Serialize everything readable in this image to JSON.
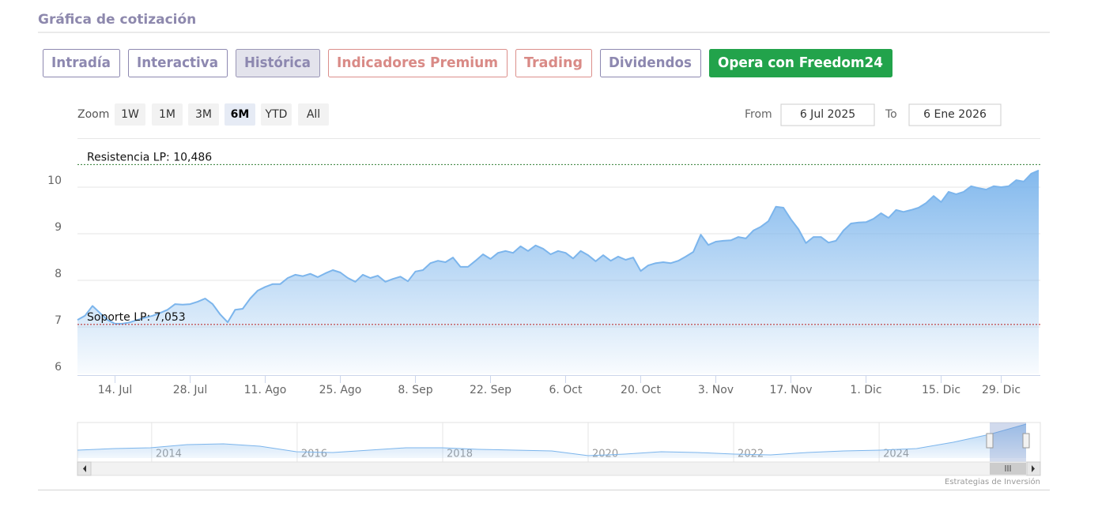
{
  "header": {
    "title": "Gráfica de cotización"
  },
  "tabs": [
    "Intradía",
    "Interactiva",
    "Histórica",
    "Indicadores Premium",
    "Trading",
    "Dividendos",
    "Opera con Freedom24"
  ],
  "zoom": {
    "label": "Zoom",
    "buttons": [
      {
        "label": "1W",
        "selected": false
      },
      {
        "label": "1M",
        "selected": false
      },
      {
        "label": "3M",
        "selected": false
      },
      {
        "label": "6M",
        "selected": true
      },
      {
        "label": "YTD",
        "selected": false
      },
      {
        "label": "All",
        "selected": false
      }
    ]
  },
  "range": {
    "from_label": "From",
    "from": "6 Jul 2025",
    "to_label": "To",
    "to": "6 Ene 2026"
  },
  "credit": "Estrategias de Inversión",
  "chart_data": {
    "type": "area",
    "color": "#7cb5ec",
    "x": [
      "7. Jul",
      "8. Jul",
      "9. Jul",
      "10. Jul",
      "11. Jul",
      "14. Jul",
      "15. Jul",
      "16. Jul",
      "17. Jul",
      "18. Jul",
      "21. Jul",
      "22. Jul",
      "23. Jul",
      "24. Jul",
      "25. Jul",
      "28. Jul",
      "29. Jul",
      "30. Jul",
      "31. Jul",
      "1. Ago",
      "4. Ago",
      "5. Ago",
      "6. Ago",
      "7. Ago",
      "8. Ago",
      "11. Ago",
      "12. Ago",
      "13. Ago",
      "14. Ago",
      "15. Ago",
      "18. Ago",
      "19. Ago",
      "20. Ago",
      "21. Ago",
      "22. Ago",
      "25. Ago",
      "26. Ago",
      "27. Ago",
      "28. Ago",
      "29. Ago",
      "1. Sep",
      "2. Sep",
      "3. Sep",
      "4. Sep",
      "5. Sep",
      "8. Sep",
      "9. Sep",
      "10. Sep",
      "11. Sep",
      "12. Sep",
      "15. Sep",
      "16. Sep",
      "17. Sep",
      "18. Sep",
      "19. Sep",
      "22. Sep",
      "23. Sep",
      "24. Sep",
      "25. Sep",
      "26. Sep",
      "29. Sep",
      "30. Sep",
      "1. Oct",
      "2. Oct",
      "3. Oct",
      "6. Oct",
      "7. Oct",
      "8. Oct",
      "9. Oct",
      "10. Oct",
      "13. Oct",
      "14. Oct",
      "15. Oct",
      "16. Oct",
      "17. Oct",
      "20. Oct",
      "21. Oct",
      "22. Oct",
      "23. Oct",
      "24. Oct",
      "27. Oct",
      "28. Oct",
      "29. Oct",
      "30. Oct",
      "31. Oct",
      "3. Nov",
      "4. Nov",
      "5. Nov",
      "6. Nov",
      "7. Nov",
      "10. Nov",
      "11. Nov",
      "12. Nov",
      "13. Nov",
      "14. Nov",
      "17. Nov",
      "18. Nov",
      "19. Nov",
      "20. Nov",
      "21. Nov",
      "24. Nov",
      "25. Nov",
      "26. Nov",
      "27. Nov",
      "28. Nov",
      "1. Dic",
      "2. Dic",
      "3. Dic",
      "4. Dic",
      "5. Dic",
      "8. Dic",
      "9. Dic",
      "10. Dic",
      "11. Dic",
      "12. Dic",
      "15. Dic",
      "16. Dic",
      "17. Dic",
      "18. Dic",
      "19. Dic",
      "22. Dic",
      "23. Dic",
      "24. Dic",
      "29. Dic",
      "30. Dic",
      "31. Dic",
      "2. Ene",
      "5. Ene",
      "6. Ene"
    ],
    "values": [
      7.15,
      7.24,
      7.45,
      7.3,
      7.15,
      7.07,
      7.07,
      7.1,
      7.15,
      7.2,
      7.24,
      7.3,
      7.37,
      7.49,
      7.48,
      7.49,
      7.54,
      7.61,
      7.49,
      7.27,
      7.1,
      7.37,
      7.39,
      7.61,
      7.78,
      7.86,
      7.92,
      7.92,
      8.05,
      8.12,
      8.09,
      8.14,
      8.07,
      8.15,
      8.22,
      8.17,
      8.05,
      7.97,
      8.12,
      8.05,
      8.1,
      7.97,
      8.03,
      8.08,
      7.98,
      8.19,
      8.22,
      8.37,
      8.42,
      8.39,
      8.49,
      8.29,
      8.29,
      8.42,
      8.56,
      8.46,
      8.59,
      8.63,
      8.59,
      8.73,
      8.63,
      8.75,
      8.68,
      8.56,
      8.63,
      8.59,
      8.47,
      8.63,
      8.54,
      8.41,
      8.54,
      8.42,
      8.51,
      8.44,
      8.49,
      8.2,
      8.32,
      8.37,
      8.39,
      8.37,
      8.42,
      8.51,
      8.61,
      8.98,
      8.76,
      8.83,
      8.85,
      8.86,
      8.93,
      8.9,
      9.07,
      9.15,
      9.27,
      9.58,
      9.56,
      9.31,
      9.1,
      8.8,
      8.93,
      8.93,
      8.81,
      8.85,
      9.07,
      9.22,
      9.24,
      9.25,
      9.32,
      9.44,
      9.34,
      9.51,
      9.47,
      9.51,
      9.56,
      9.66,
      9.81,
      9.68,
      9.9,
      9.85,
      9.9,
      10.02,
      9.98,
      9.95,
      10.02,
      10,
      10.02,
      10.15,
      10.12,
      10.29,
      10.36
    ],
    "xticks": [
      "14. Jul",
      "28. Jul",
      "11. Ago",
      "25. Ago",
      "8. Sep",
      "22. Sep",
      "6. Oct",
      "20. Oct",
      "3. Nov",
      "17. Nov",
      "1. Dic",
      "15. Dic",
      "29. Dic"
    ],
    "ylim": [
      6,
      11
    ],
    "yticks": [
      6,
      7,
      8,
      9,
      10
    ],
    "grid": true,
    "plot_lines": [
      {
        "label": "Resistencia LP: 10,486",
        "value": 10.486,
        "color": "#2e7d32"
      },
      {
        "label": "Soporte LP: 7,053",
        "value": 7.053,
        "color": "#b71c1c"
      }
    ],
    "navigator": {
      "values": [
        2.44,
        2.93,
        3.18,
        4.16,
        4.4,
        3.67,
        1.96,
        1.71,
        2.44,
        3.18,
        3.18,
        2.69,
        2.44,
        2.2,
        0.73,
        1.22,
        1.96,
        1.71,
        1.22,
        0.98,
        1.71,
        2.2,
        2.44,
        2.93,
        4.89,
        7.33,
        10.5
      ],
      "xlim": [
        2012.98,
        2026.02
      ],
      "xticks": [
        2014,
        2016,
        2018,
        2020,
        2022,
        2024
      ],
      "ylim": [
        0,
        11
      ],
      "color": "#7cb5ec"
    }
  }
}
